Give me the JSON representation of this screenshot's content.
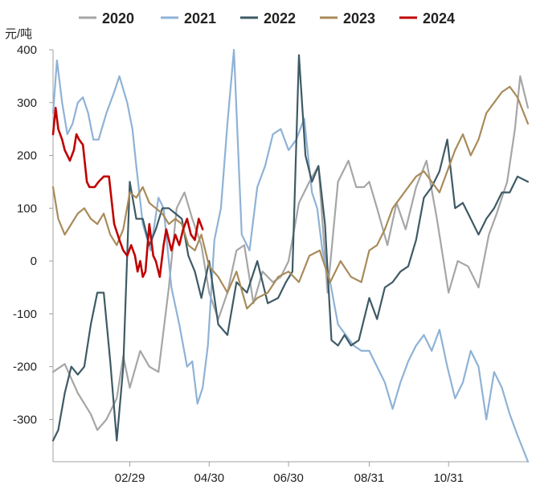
{
  "chart_data": {
    "type": "line",
    "unit_label": "元/吨",
    "ylim": [
      -380,
      400
    ],
    "yticks": [
      400,
      300,
      200,
      100,
      0,
      -100,
      -200,
      -300
    ],
    "ytick_labels": [
      "400",
      "300",
      "200",
      "100",
      "0",
      "-100",
      "-200",
      "-300"
    ],
    "xlim": [
      1,
      366
    ],
    "xticks": [
      60,
      121,
      182,
      244,
      305
    ],
    "xtick_labels": [
      "02/29",
      "04/30",
      "06/30",
      "08/31",
      "10/31"
    ],
    "legend_position": "top",
    "grid": false,
    "series": [
      {
        "name": "2020",
        "color": "#a6a6a6",
        "x": [
          1,
          10,
          20,
          30,
          35,
          42,
          50,
          55,
          60,
          68,
          75,
          82,
          90,
          96,
          102,
          108,
          115,
          121,
          128,
          135,
          142,
          148,
          155,
          162,
          170,
          176,
          182,
          190,
          198,
          205,
          212,
          220,
          228,
          234,
          240,
          244,
          250,
          258,
          265,
          272,
          280,
          288,
          296,
          305,
          312,
          320,
          328,
          336,
          342,
          350,
          356,
          360,
          366
        ],
        "values": [
          -210,
          -195,
          -250,
          -290,
          -320,
          -300,
          -260,
          -180,
          -240,
          -170,
          -200,
          -210,
          -50,
          100,
          130,
          80,
          30,
          -60,
          -110,
          -60,
          20,
          30,
          -80,
          -20,
          -40,
          -30,
          0,
          110,
          150,
          180,
          -60,
          150,
          190,
          140,
          140,
          150,
          100,
          30,
          110,
          60,
          140,
          190,
          80,
          -60,
          0,
          -10,
          -50,
          50,
          90,
          150,
          250,
          350,
          290
        ]
      },
      {
        "name": "2021",
        "color": "#8fb2d6",
        "x": [
          1,
          4,
          8,
          12,
          16,
          20,
          24,
          28,
          32,
          36,
          42,
          48,
          52,
          58,
          62,
          65,
          70,
          76,
          82,
          86,
          92,
          98,
          104,
          108,
          112,
          116,
          120,
          125,
          130,
          135,
          140,
          146,
          152,
          158,
          164,
          170,
          176,
          182,
          188,
          194,
          200,
          204,
          208,
          214,
          220,
          226,
          232,
          238,
          244,
          250,
          256,
          262,
          268,
          274,
          280,
          286,
          292,
          298,
          304,
          310,
          316,
          322,
          328,
          334,
          340,
          346,
          352,
          358,
          366
        ],
        "values": [
          280,
          380,
          300,
          240,
          260,
          300,
          310,
          280,
          230,
          230,
          280,
          320,
          350,
          300,
          250,
          180,
          70,
          20,
          120,
          100,
          -50,
          -120,
          -200,
          -190,
          -270,
          -240,
          -160,
          40,
          100,
          260,
          400,
          50,
          20,
          140,
          180,
          240,
          250,
          210,
          230,
          270,
          130,
          100,
          20,
          -40,
          -120,
          -140,
          -160,
          -170,
          -170,
          -200,
          -230,
          -280,
          -230,
          -190,
          -160,
          -140,
          -170,
          -130,
          -200,
          -260,
          -230,
          -170,
          -200,
          -300,
          -210,
          -240,
          -290,
          -330,
          -380
        ]
      },
      {
        "name": "2022",
        "color": "#3e5a65",
        "x": [
          1,
          5,
          10,
          15,
          20,
          25,
          30,
          35,
          40,
          45,
          50,
          55,
          60,
          65,
          70,
          75,
          80,
          85,
          90,
          95,
          100,
          105,
          110,
          115,
          121,
          128,
          135,
          142,
          150,
          158,
          166,
          174,
          180,
          185,
          190,
          195,
          200,
          205,
          210,
          215,
          220,
          225,
          230,
          236,
          244,
          250,
          256,
          262,
          268,
          274,
          280,
          286,
          292,
          298,
          304,
          310,
          316,
          322,
          328,
          334,
          340,
          346,
          352,
          358,
          366
        ],
        "values": [
          -340,
          -320,
          -250,
          -200,
          -215,
          -200,
          -120,
          -60,
          -60,
          -190,
          -340,
          -200,
          150,
          80,
          80,
          30,
          60,
          100,
          100,
          90,
          80,
          10,
          -20,
          -70,
          0,
          -120,
          -140,
          -40,
          -60,
          0,
          -80,
          -70,
          -40,
          -20,
          390,
          200,
          150,
          180,
          70,
          -150,
          -160,
          -140,
          -160,
          -150,
          -70,
          -110,
          -50,
          -40,
          -20,
          -10,
          40,
          120,
          140,
          170,
          230,
          100,
          110,
          80,
          50,
          80,
          100,
          130,
          130,
          160,
          150
        ]
      },
      {
        "name": "2023",
        "color": "#a88b5a",
        "x": [
          1,
          5,
          10,
          15,
          20,
          25,
          30,
          35,
          40,
          45,
          50,
          55,
          60,
          65,
          70,
          75,
          80,
          85,
          90,
          95,
          100,
          105,
          110,
          115,
          121,
          128,
          135,
          142,
          150,
          158,
          166,
          174,
          182,
          190,
          198,
          206,
          214,
          222,
          230,
          238,
          244,
          250,
          256,
          262,
          268,
          274,
          280,
          286,
          292,
          298,
          304,
          310,
          316,
          322,
          328,
          334,
          340,
          346,
          352,
          358,
          366
        ],
        "values": [
          140,
          80,
          50,
          70,
          90,
          100,
          80,
          70,
          90,
          50,
          30,
          60,
          130,
          120,
          140,
          110,
          100,
          90,
          70,
          80,
          70,
          30,
          20,
          50,
          -10,
          -30,
          -60,
          -20,
          -90,
          -70,
          -60,
          -30,
          -20,
          -40,
          10,
          20,
          -40,
          0,
          -30,
          -40,
          20,
          30,
          60,
          100,
          120,
          140,
          160,
          170,
          150,
          130,
          170,
          210,
          240,
          200,
          230,
          280,
          300,
          320,
          330,
          310,
          260
        ]
      },
      {
        "name": "2024",
        "color": "#c00000",
        "x": [
          1,
          3,
          5,
          8,
          10,
          12,
          14,
          17,
          19,
          21,
          24,
          27,
          29,
          33,
          36,
          40,
          44,
          48,
          52,
          55,
          58,
          61,
          64,
          66,
          68,
          70,
          72,
          75,
          78,
          80,
          83,
          86,
          88,
          90,
          92,
          95,
          98,
          101,
          104,
          107,
          110,
          113,
          116
        ],
        "values": [
          240,
          290,
          250,
          230,
          210,
          200,
          190,
          210,
          240,
          230,
          220,
          150,
          140,
          140,
          150,
          160,
          160,
          70,
          40,
          20,
          10,
          30,
          10,
          -20,
          0,
          -30,
          -20,
          70,
          10,
          0,
          -30,
          30,
          60,
          40,
          20,
          50,
          30,
          60,
          80,
          50,
          40,
          80,
          60
        ]
      }
    ]
  }
}
